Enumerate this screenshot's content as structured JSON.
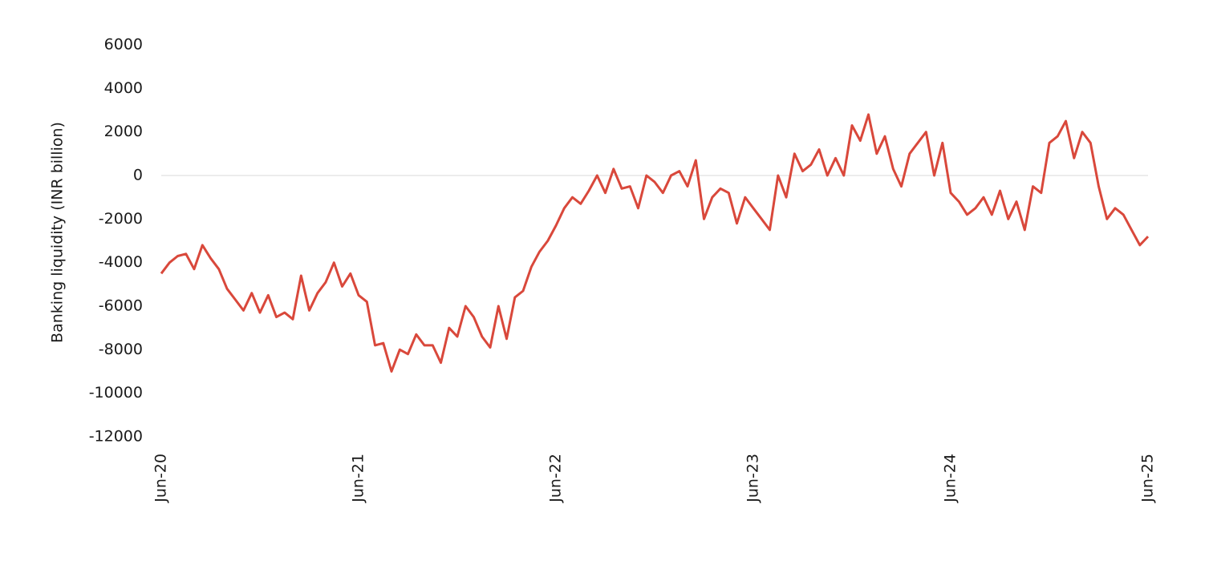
{
  "chart_data": {
    "type": "line",
    "y_label": "Banking  liquidity  (INR billion)",
    "categories": [
      "Jun-20",
      null,
      null,
      null,
      null,
      null,
      null,
      null,
      null,
      null,
      null,
      null,
      null,
      null,
      null,
      null,
      null,
      null,
      null,
      null,
      null,
      null,
      null,
      null,
      "Jun-21",
      null,
      null,
      null,
      null,
      null,
      null,
      null,
      null,
      null,
      null,
      null,
      null,
      null,
      null,
      null,
      null,
      null,
      null,
      null,
      null,
      null,
      null,
      null,
      "Jun-22",
      null,
      null,
      null,
      null,
      null,
      null,
      null,
      null,
      null,
      null,
      null,
      null,
      null,
      null,
      null,
      null,
      null,
      null,
      null,
      null,
      null,
      null,
      null,
      "Jun-23",
      null,
      null,
      null,
      null,
      null,
      null,
      null,
      null,
      null,
      null,
      null,
      null,
      null,
      null,
      null,
      null,
      null,
      null,
      null,
      null,
      null,
      null,
      null,
      "Jun-24",
      null,
      null,
      null,
      null,
      null,
      null,
      null,
      null,
      null,
      null,
      null,
      null,
      null,
      null,
      null,
      null,
      null,
      null,
      null,
      null,
      null,
      null,
      null,
      "Jun-25"
    ],
    "series": [
      {
        "color": "#d9483b",
        "values": [
          -4500,
          -4000,
          -3700,
          -3600,
          -4300,
          -3200,
          -3800,
          -4300,
          -5200,
          -5700,
          -6200,
          -5400,
          -6300,
          -5500,
          -6500,
          -6300,
          -6600,
          -4600,
          -6200,
          -5400,
          -4900,
          -4000,
          -5100,
          -4500,
          -5500,
          -5800,
          -7800,
          -7700,
          -9000,
          -8000,
          -8200,
          -7300,
          -7800,
          -7800,
          -8600,
          -7000,
          -7400,
          -6000,
          -6500,
          -7400,
          -7900,
          -6000,
          -7500,
          -5600,
          -5300,
          -4200,
          -3500,
          -3000,
          -2300,
          -1500,
          -1000,
          -1300,
          -700,
          0,
          -800,
          300,
          -600,
          -500,
          -1500,
          0,
          -300,
          -800,
          0,
          200,
          -500,
          700,
          -2000,
          -1000,
          -600,
          -800,
          -2200,
          -1000,
          -1500,
          -2000,
          -2500,
          0,
          -1000,
          1000,
          200,
          500,
          1200,
          0,
          800,
          0,
          2300,
          1600,
          2800,
          1000,
          1800,
          300,
          -500,
          1000,
          1500,
          2000,
          0,
          1500,
          -800,
          -1200,
          -1800,
          -1500,
          -1000,
          -1800,
          -700,
          -2000,
          -1200,
          -2500,
          -500,
          -800,
          1500,
          1800,
          2500,
          800,
          2000,
          1500,
          -500,
          -2000,
          -1500,
          -1800,
          -2500,
          -3200,
          -2800
        ]
      }
    ],
    "ylim": [
      -12000,
      6000
    ],
    "yticks": [
      6000,
      4000,
      2000,
      0,
      -2000,
      -4000,
      -6000,
      -8000,
      -10000,
      -12000
    ],
    "zero_line": true
  }
}
